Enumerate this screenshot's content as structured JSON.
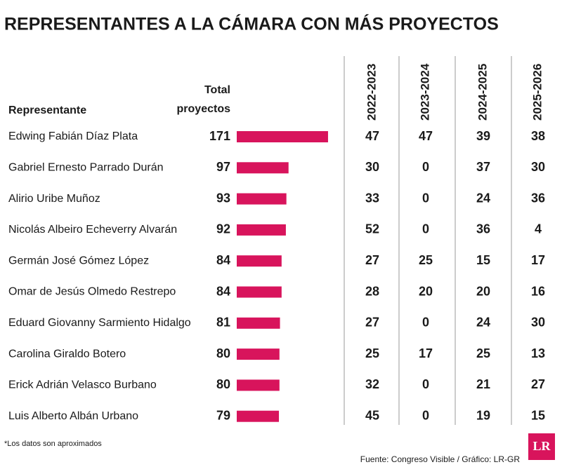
{
  "title": "REPRESENTANTES A LA CÁMARA CON MÁS PROYECTOS",
  "table": {
    "columns": {
      "representante": "Representante",
      "total": [
        "Total",
        "proyectos"
      ],
      "periods": [
        "2022-2023",
        "2023-2024",
        "2024-2025",
        "2025-2026"
      ]
    },
    "rows": [
      [
        "Edwing Fabián Díaz Plata",
        171,
        47,
        47,
        39,
        38
      ],
      [
        "Gabriel Ernesto Parrado Durán",
        97,
        30,
        0,
        37,
        30
      ],
      [
        "Alirio Uribe Muñoz",
        93,
        33,
        0,
        24,
        36
      ],
      [
        "Nicolás Albeiro Echeverry Alvarán",
        92,
        52,
        0,
        36,
        4
      ],
      [
        "Germán José Gómez López",
        84,
        27,
        25,
        15,
        17
      ],
      [
        "Omar de Jesús Olmedo Restrepo",
        84,
        28,
        20,
        20,
        16
      ],
      [
        "Eduard Giovanny Sarmiento Hidalgo",
        81,
        27,
        0,
        24,
        30
      ],
      [
        "Carolina Giraldo Botero",
        80,
        25,
        17,
        25,
        13
      ],
      [
        "Erick Adrián Velasco Burbano",
        80,
        32,
        0,
        21,
        27
      ],
      [
        "Luis Alberto Albán Urbano",
        79,
        45,
        0,
        19,
        15
      ]
    ],
    "bar_color": "#d8145c"
  },
  "footnote": "*Los datos son aproximados",
  "source": "Fuente: Congreso Visible / Gráfico: LR-GR",
  "logo": "LR"
}
